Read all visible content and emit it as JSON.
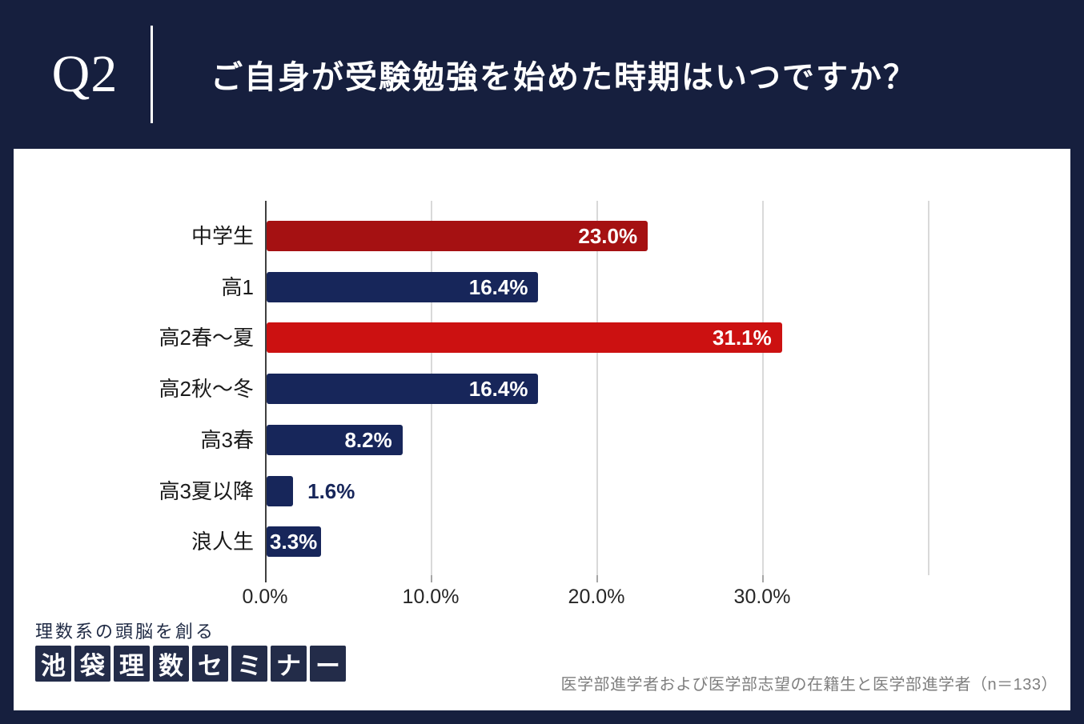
{
  "header": {
    "question_number": "Q2",
    "title": "ご自身が受験勉強を始めた時期はいつですか？"
  },
  "chart_data": {
    "type": "bar",
    "orientation": "horizontal",
    "title": "",
    "xlabel": "",
    "ylabel": "",
    "categories": [
      "中学生",
      "高1",
      "高2春〜夏",
      "高2秋〜冬",
      "高3春",
      "高3夏以降",
      "浪人生"
    ],
    "values": [
      23.0,
      16.4,
      31.1,
      16.4,
      8.2,
      1.6,
      3.3
    ],
    "value_labels": [
      "23.0%",
      "16.4%",
      "31.1%",
      "16.4%",
      "8.2%",
      "1.6%",
      "3.3%"
    ],
    "bar_colors": [
      "#a51112",
      "#17265a",
      "#cc1111",
      "#17265a",
      "#17265a",
      "#17265a",
      "#17265a"
    ],
    "label_inside": [
      true,
      true,
      true,
      true,
      true,
      false,
      true
    ],
    "x_ticks": [
      "0.0%",
      "10.0%",
      "20.0%",
      "30.0%"
    ],
    "x_tick_values": [
      0,
      10,
      20,
      30
    ],
    "x_grid_values": [
      10,
      20,
      30,
      40
    ],
    "xlim": [
      0,
      40
    ],
    "grid": true,
    "legend": "none"
  },
  "branding": {
    "tagline": "理数系の頭脳を創る",
    "logo_chars": [
      "池",
      "袋",
      "理",
      "数",
      "セ",
      "ミ",
      "ナ",
      "ー"
    ]
  },
  "footnote": "医学部進学者および医学部志望の在籍生と医学部進学者（n＝133）",
  "colors": {
    "page_background": "#161f3e",
    "card_background": "#ffffff",
    "bar_navy": "#17265a",
    "bar_red_dark": "#a51112",
    "bar_red_bright": "#cc1111",
    "gridline": "#d9d9d9",
    "axis_line": "#3f3f3f",
    "category_text": "#1a1a1a",
    "value_text_inside": "#ffffff",
    "footnote_text": "#7f7f7f",
    "header_text": "#ffffff",
    "logo_box": "#232c49"
  }
}
